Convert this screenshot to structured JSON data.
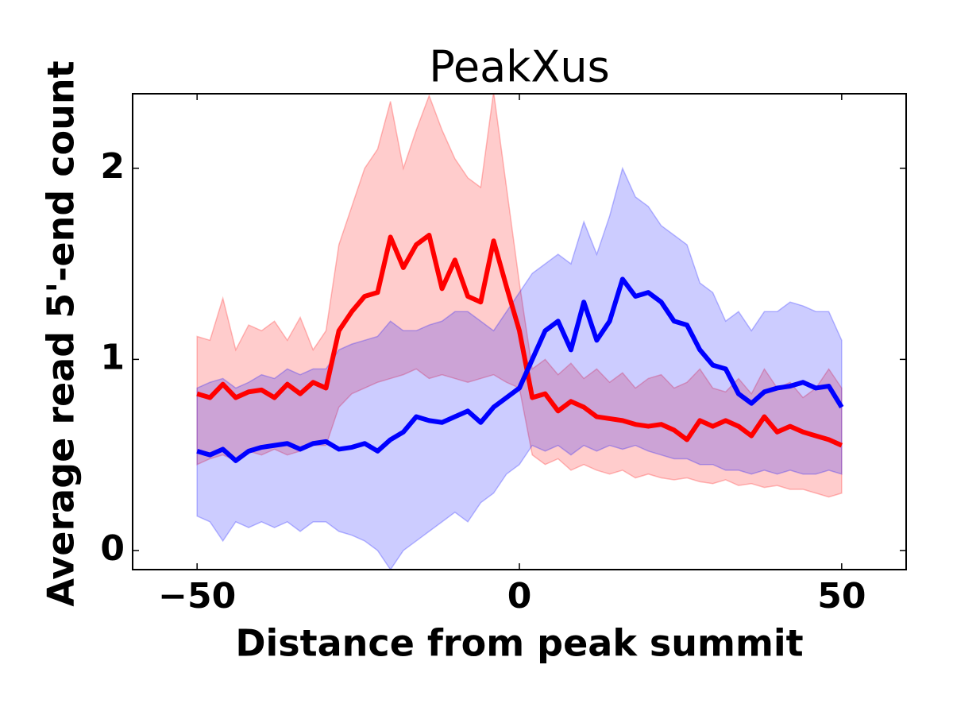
{
  "chart_data": {
    "type": "line",
    "title": "PeakXus",
    "xlabel": "Distance from peak summit",
    "ylabel": "Average read 5'-end count",
    "x": [
      -50,
      -48,
      -46,
      -44,
      -42,
      -40,
      -38,
      -36,
      -34,
      -32,
      -30,
      -28,
      -26,
      -24,
      -22,
      -20,
      -18,
      -16,
      -14,
      -12,
      -10,
      -8,
      -6,
      -4,
      -2,
      0,
      2,
      4,
      6,
      8,
      10,
      12,
      14,
      16,
      18,
      20,
      22,
      24,
      26,
      28,
      30,
      32,
      34,
      36,
      38,
      40,
      42,
      44,
      46,
      48,
      50
    ],
    "series": [
      {
        "color": "#ff0000",
        "values": [
          0.82,
          0.8,
          0.87,
          0.8,
          0.83,
          0.84,
          0.8,
          0.87,
          0.82,
          0.88,
          0.85,
          1.15,
          1.25,
          1.33,
          1.35,
          1.64,
          1.48,
          1.6,
          1.65,
          1.37,
          1.52,
          1.33,
          1.3,
          1.62,
          1.38,
          1.15,
          0.8,
          0.82,
          0.73,
          0.78,
          0.75,
          0.7,
          0.69,
          0.68,
          0.66,
          0.65,
          0.66,
          0.63,
          0.58,
          0.68,
          0.65,
          0.68,
          0.65,
          0.6,
          0.7,
          0.62,
          0.65,
          0.62,
          0.6,
          0.58,
          0.55
        ],
        "upper": [
          1.12,
          1.1,
          1.32,
          1.05,
          1.18,
          1.15,
          1.2,
          1.1,
          1.22,
          1.05,
          1.15,
          1.6,
          1.8,
          2.0,
          2.1,
          2.35,
          2.0,
          2.2,
          2.38,
          2.2,
          2.05,
          1.95,
          1.9,
          2.4,
          1.9,
          1.4,
          0.95,
          1.0,
          0.92,
          0.98,
          0.9,
          0.95,
          0.88,
          0.93,
          0.85,
          0.9,
          0.92,
          0.85,
          0.88,
          0.95,
          0.85,
          0.83,
          0.9,
          0.82,
          0.95,
          0.85,
          0.88,
          0.8,
          0.85,
          0.95,
          0.85
        ],
        "lower": [
          0.45,
          0.48,
          0.5,
          0.47,
          0.52,
          0.5,
          0.53,
          0.5,
          0.52,
          0.55,
          0.55,
          0.75,
          0.82,
          0.85,
          0.88,
          0.9,
          0.92,
          0.95,
          0.9,
          0.92,
          0.9,
          0.88,
          0.9,
          0.92,
          0.88,
          0.85,
          0.5,
          0.45,
          0.48,
          0.42,
          0.45,
          0.42,
          0.4,
          0.42,
          0.38,
          0.4,
          0.38,
          0.37,
          0.38,
          0.36,
          0.35,
          0.37,
          0.34,
          0.35,
          0.33,
          0.34,
          0.32,
          0.32,
          0.3,
          0.28,
          0.3
        ]
      },
      {
        "color": "#0000ff",
        "values": [
          0.52,
          0.5,
          0.53,
          0.47,
          0.52,
          0.54,
          0.55,
          0.56,
          0.53,
          0.56,
          0.57,
          0.53,
          0.54,
          0.56,
          0.52,
          0.58,
          0.62,
          0.7,
          0.68,
          0.67,
          0.7,
          0.73,
          0.67,
          0.75,
          0.8,
          0.85,
          1.0,
          1.15,
          1.2,
          1.05,
          1.3,
          1.1,
          1.2,
          1.42,
          1.33,
          1.35,
          1.3,
          1.2,
          1.18,
          1.05,
          0.97,
          0.95,
          0.82,
          0.77,
          0.83,
          0.85,
          0.86,
          0.88,
          0.85,
          0.86,
          0.75
        ],
        "upper": [
          0.85,
          0.88,
          0.9,
          0.85,
          0.88,
          0.92,
          0.9,
          0.95,
          0.92,
          0.95,
          0.95,
          1.05,
          1.08,
          1.1,
          1.12,
          1.2,
          1.15,
          1.15,
          1.18,
          1.2,
          1.25,
          1.25,
          1.2,
          1.15,
          1.25,
          1.35,
          1.45,
          1.5,
          1.55,
          1.5,
          1.72,
          1.55,
          1.75,
          2.0,
          1.85,
          1.8,
          1.7,
          1.65,
          1.6,
          1.4,
          1.35,
          1.2,
          1.25,
          1.15,
          1.25,
          1.25,
          1.3,
          1.28,
          1.25,
          1.25,
          1.1
        ],
        "lower": [
          0.18,
          0.15,
          0.05,
          0.15,
          0.12,
          0.15,
          0.12,
          0.15,
          0.1,
          0.15,
          0.15,
          0.1,
          0.08,
          0.05,
          0.0,
          -0.1,
          0.0,
          0.05,
          0.1,
          0.15,
          0.2,
          0.15,
          0.25,
          0.3,
          0.4,
          0.45,
          0.55,
          0.52,
          0.55,
          0.5,
          0.55,
          0.52,
          0.55,
          0.53,
          0.55,
          0.52,
          0.5,
          0.48,
          0.48,
          0.45,
          0.45,
          0.42,
          0.42,
          0.4,
          0.42,
          0.4,
          0.42,
          0.4,
          0.4,
          0.42,
          0.4
        ]
      }
    ],
    "xlim": [
      -60,
      60
    ],
    "xticks": [
      {
        "value": -50,
        "label": "−50"
      },
      0,
      50
    ],
    "ylim": [
      -0.1,
      2.39
    ],
    "yticks": [
      0,
      1,
      2
    ],
    "grid": false
  }
}
